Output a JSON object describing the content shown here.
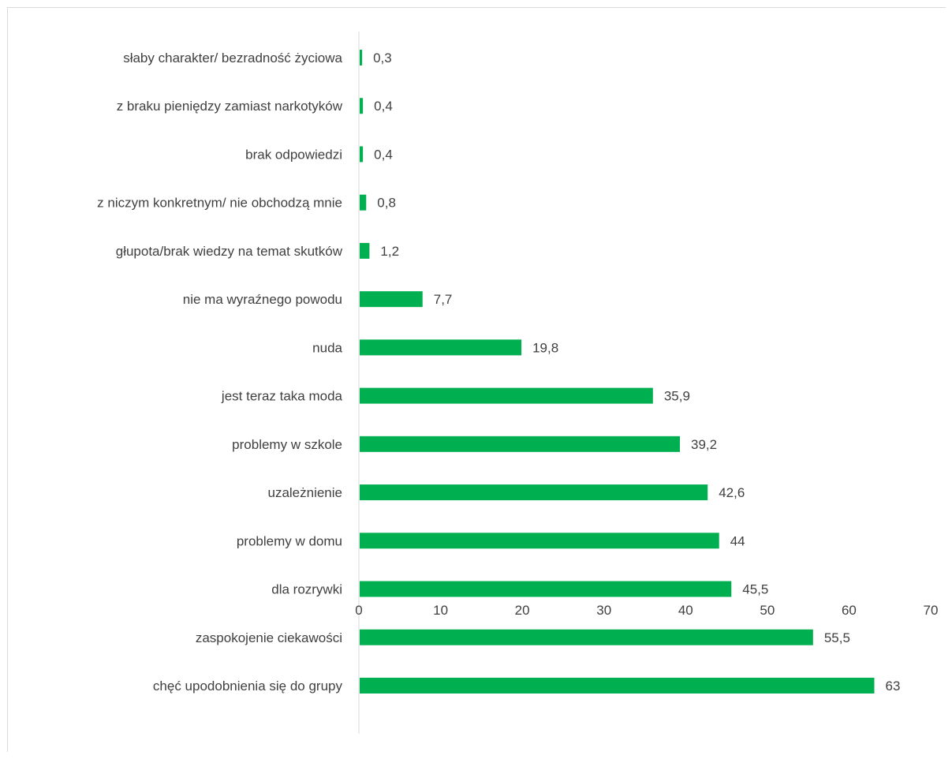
{
  "chart_data": {
    "type": "bar",
    "orientation": "horizontal",
    "categories": [
      "słaby charakter/ bezradność życiowa",
      "z braku pieniędzy zamiast narkotyków",
      "brak odpowiedzi",
      "z niczym konkretnym/ nie obchodzą mnie",
      "głupota/brak wiedzy na temat skutków",
      "nie ma wyraźnego powodu",
      "nuda",
      "jest teraz taka moda",
      "problemy w szkole",
      "uzależnienie",
      "problemy w domu",
      "dla rozrywki",
      "zaspokojenie ciekawości",
      "chęć upodobnienia się do grupy"
    ],
    "values": [
      0.3,
      0.4,
      0.4,
      0.8,
      1.2,
      7.7,
      19.8,
      35.9,
      39.2,
      42.6,
      44,
      45.5,
      55.5,
      63
    ],
    "value_labels": [
      "0,3",
      "0,4",
      "0,4",
      "0,8",
      "1,2",
      "7,7",
      "19,8",
      "35,9",
      "39,2",
      "42,6",
      "44",
      "45,5",
      "55,5",
      "63"
    ],
    "x_ticks": [
      0,
      10,
      20,
      30,
      40,
      50,
      60,
      70
    ],
    "xlim": [
      0,
      70
    ],
    "title": "",
    "xlabel": "",
    "ylabel": "",
    "grid": false,
    "legend": "none",
    "bar_color": "#00b050",
    "axis_color": "#d9d9d9",
    "text_color": "#404040"
  }
}
